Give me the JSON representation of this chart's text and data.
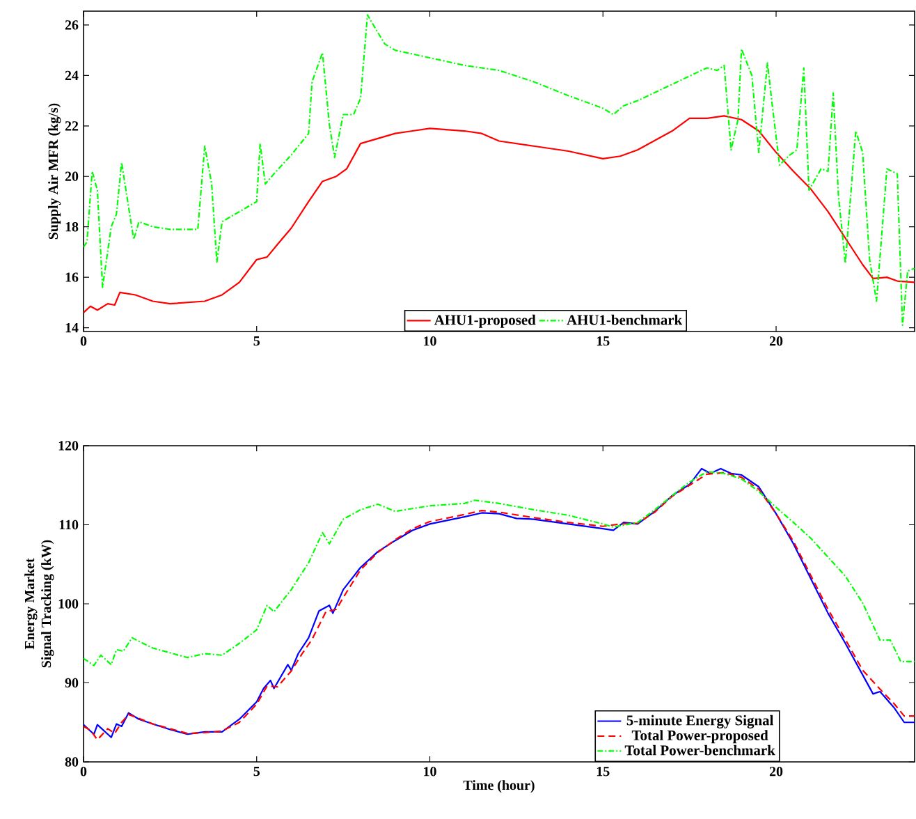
{
  "chart_data": [
    {
      "type": "line",
      "ylabel": "Supply Air MFR (kg/s)",
      "xlim": [
        0,
        24
      ],
      "ylim": [
        13.85,
        26.55
      ],
      "xticks": [
        0,
        5,
        10,
        15,
        20
      ],
      "yticks": [
        14,
        16,
        18,
        20,
        22,
        24,
        26
      ],
      "legend": "bottom",
      "grid": false,
      "series": [
        {
          "name": "AHU1-proposed",
          "color": "#ff0000",
          "line_style": "solid",
          "x": [
            0,
            0.2,
            0.4,
            0.7,
            0.9,
            1.05,
            1.5,
            2,
            2.5,
            3,
            3.5,
            4,
            4.5,
            5,
            5.3,
            5.6,
            6,
            6.5,
            6.9,
            7.3,
            7.6,
            8,
            8.5,
            9,
            9.5,
            10,
            11,
            11.5,
            12,
            13,
            14,
            15,
            15.5,
            16,
            17,
            17.5,
            18,
            18.5,
            19,
            19.5,
            20,
            20.5,
            21,
            21.5,
            22,
            22.5,
            22.8,
            23.2,
            23.5,
            24
          ],
          "values": [
            14.6,
            14.85,
            14.7,
            14.95,
            14.9,
            15.4,
            15.3,
            15.05,
            14.95,
            15.0,
            15.05,
            15.3,
            15.8,
            16.7,
            16.8,
            17.3,
            17.95,
            19.0,
            19.8,
            20.0,
            20.3,
            21.3,
            21.5,
            21.7,
            21.8,
            21.9,
            21.8,
            21.7,
            21.4,
            21.2,
            21.0,
            20.7,
            20.8,
            21.05,
            21.8,
            22.3,
            22.3,
            22.4,
            22.25,
            21.8,
            20.95,
            20.2,
            19.5,
            18.6,
            17.55,
            16.5,
            15.95,
            16.0,
            15.85,
            15.8
          ]
        },
        {
          "name": "AHU1-benchmark",
          "color": "#00ff00",
          "line_style": "dashdot",
          "x": [
            0,
            0.1,
            0.25,
            0.4,
            0.55,
            0.8,
            0.95,
            1.1,
            1.3,
            1.45,
            1.6,
            2,
            2.5,
            3,
            3.3,
            3.5,
            3.7,
            3.85,
            4,
            4.5,
            5,
            5.1,
            5.25,
            5.5,
            5.8,
            6,
            6.5,
            6.6,
            6.9,
            7.1,
            7.25,
            7.5,
            7.8,
            8,
            8.2,
            8.5,
            8.7,
            9,
            10,
            11,
            12,
            13,
            14,
            15,
            15.3,
            15.6,
            16,
            17,
            18,
            18.3,
            18.5,
            18.7,
            18.9,
            19,
            19.3,
            19.5,
            19.75,
            19.9,
            20.1,
            20.4,
            20.6,
            20.8,
            20.95,
            21.3,
            21.5,
            21.65,
            21.8,
            22,
            22.3,
            22.5,
            22.7,
            22.9,
            23.2,
            23.5,
            23.65,
            23.8,
            24
          ],
          "values": [
            17.2,
            17.4,
            20.2,
            19.45,
            15.6,
            18,
            18.5,
            20.55,
            18.8,
            17.5,
            18.2,
            18.0,
            17.9,
            17.9,
            17.9,
            21.2,
            19.7,
            16.6,
            18.2,
            18.6,
            19.0,
            21.3,
            19.7,
            20.1,
            20.55,
            20.85,
            21.7,
            23.75,
            24.9,
            22.05,
            20.75,
            22.45,
            22.45,
            23.1,
            26.4,
            25.7,
            25.25,
            25.0,
            24.7,
            24.4,
            24.2,
            23.75,
            23.2,
            22.7,
            22.45,
            22.8,
            23.0,
            23.65,
            24.3,
            24.2,
            24.4,
            21.05,
            22.25,
            25.05,
            24.0,
            20.95,
            24.5,
            22.7,
            20.45,
            20.85,
            21.05,
            24.3,
            19.45,
            20.3,
            20.2,
            23.3,
            19.25,
            16.55,
            21.8,
            20.95,
            16.7,
            15.05,
            20.3,
            20.1,
            14.1,
            16.25,
            16.35
          ]
        }
      ]
    },
    {
      "type": "line",
      "xlabel": "Time (hour)",
      "ylabel": "Energy Market\nSignal Tracking (kW)",
      "xlim": [
        0,
        24
      ],
      "ylim": [
        80,
        120
      ],
      "xticks": [
        0,
        5,
        10,
        15,
        20
      ],
      "yticks": [
        80,
        90,
        100,
        110,
        120
      ],
      "legend": "bottom right",
      "grid": false,
      "series": [
        {
          "name": "5-minute Energy Signal",
          "color": "#0000ff",
          "line_style": "solid",
          "x": [
            0,
            0.3,
            0.4,
            0.8,
            0.95,
            1.1,
            1.3,
            1.6,
            2,
            2.5,
            3,
            3.5,
            4,
            4.5,
            5,
            5.2,
            5.4,
            5.5,
            5.9,
            6,
            6.2,
            6.5,
            6.8,
            7.1,
            7.2,
            7.5,
            8,
            8.5,
            9,
            9.5,
            10,
            11,
            11.5,
            12,
            12.5,
            13,
            14,
            15,
            15.3,
            15.6,
            16,
            16.5,
            17,
            17.5,
            17.85,
            18.1,
            18.4,
            18.7,
            19,
            19.5,
            20,
            20.5,
            21,
            21.5,
            22,
            22.5,
            22.8,
            23,
            23.4,
            23.7,
            24
          ],
          "values": [
            84.7,
            83.5,
            84.7,
            83.1,
            84.8,
            84.5,
            86.2,
            85.4,
            84.8,
            84.1,
            83.5,
            83.8,
            83.8,
            85.4,
            87.6,
            89.3,
            90.3,
            89.3,
            92.3,
            91.6,
            93.7,
            95.7,
            99.1,
            99.8,
            98.8,
            101.8,
            104.6,
            106.6,
            108.0,
            109.3,
            110.1,
            111.0,
            111.5,
            111.4,
            110.8,
            110.7,
            110.1,
            109.5,
            109.3,
            110.3,
            110.1,
            111.7,
            113.7,
            115.1,
            117.1,
            116.5,
            117.1,
            116.5,
            116.3,
            114.8,
            111.4,
            107.6,
            103.2,
            98.8,
            95.0,
            91.0,
            88.6,
            88.9,
            86.9,
            85.0,
            85.0
          ]
        },
        {
          "name": "Total Power-proposed",
          "color": "#ff0000",
          "line_style": "dashed",
          "x": [
            0,
            0.2,
            0.4,
            0.7,
            0.9,
            1.1,
            1.3,
            1.6,
            2,
            2.5,
            3,
            3.5,
            4,
            4.5,
            5,
            5.3,
            5.6,
            6,
            6.3,
            6.6,
            7,
            7.3,
            7.6,
            8,
            8.5,
            9,
            9.5,
            10,
            11,
            11.5,
            12,
            13,
            14,
            15,
            15.5,
            16,
            16.5,
            17,
            17.5,
            18,
            18.5,
            19,
            19.5,
            20,
            20.5,
            21,
            21.5,
            22,
            22.5,
            23,
            23.4,
            23.7,
            24
          ],
          "values": [
            84.5,
            84.0,
            82.8,
            84.2,
            83.6,
            85.0,
            86.0,
            85.5,
            84.8,
            84.2,
            83.6,
            83.7,
            83.9,
            85.0,
            87.3,
            89.6,
            89.5,
            91.5,
            93.6,
            95.5,
            99.0,
            99.3,
            101.5,
            104.3,
            106.5,
            108.1,
            109.5,
            110.4,
            111.3,
            111.8,
            111.6,
            110.9,
            110.3,
            109.8,
            110.1,
            110.2,
            111.6,
            113.6,
            115.0,
            116.4,
            116.6,
            116.0,
            114.5,
            111.4,
            107.9,
            103.6,
            99.3,
            95.5,
            91.6,
            89.2,
            87.4,
            85.8,
            85.8
          ]
        },
        {
          "name": "Total Power-benchmark",
          "color": "#00ff00",
          "line_style": "dashdot",
          "x": [
            0,
            0.3,
            0.5,
            0.8,
            0.95,
            1.15,
            1.4,
            2,
            2.5,
            3,
            3.5,
            4,
            4.5,
            5,
            5.3,
            5.5,
            6,
            6.5,
            6.9,
            7.1,
            7.5,
            8,
            8.5,
            9,
            10,
            11,
            11.3,
            12,
            13,
            14,
            15,
            15.3,
            16,
            16.5,
            17,
            17.5,
            18,
            18.5,
            19,
            19.5,
            20,
            20.5,
            21,
            21.5,
            22,
            22.5,
            23,
            23.3,
            23.6,
            24
          ],
          "values": [
            93.1,
            92.2,
            93.5,
            92.3,
            94.2,
            94.0,
            95.7,
            94.4,
            93.8,
            93.2,
            93.7,
            93.5,
            95.0,
            96.7,
            99.8,
            99.0,
            101.8,
            105.2,
            109.0,
            107.6,
            110.7,
            111.9,
            112.6,
            111.7,
            112.4,
            112.7,
            113.1,
            112.7,
            111.9,
            111.2,
            110.1,
            109.7,
            110.3,
            111.9,
            113.7,
            115.4,
            116.7,
            116.5,
            115.8,
            114.2,
            112.2,
            110.3,
            108.3,
            105.9,
            103.5,
            100.1,
            95.4,
            95.4,
            92.7,
            92.7
          ]
        }
      ]
    }
  ]
}
